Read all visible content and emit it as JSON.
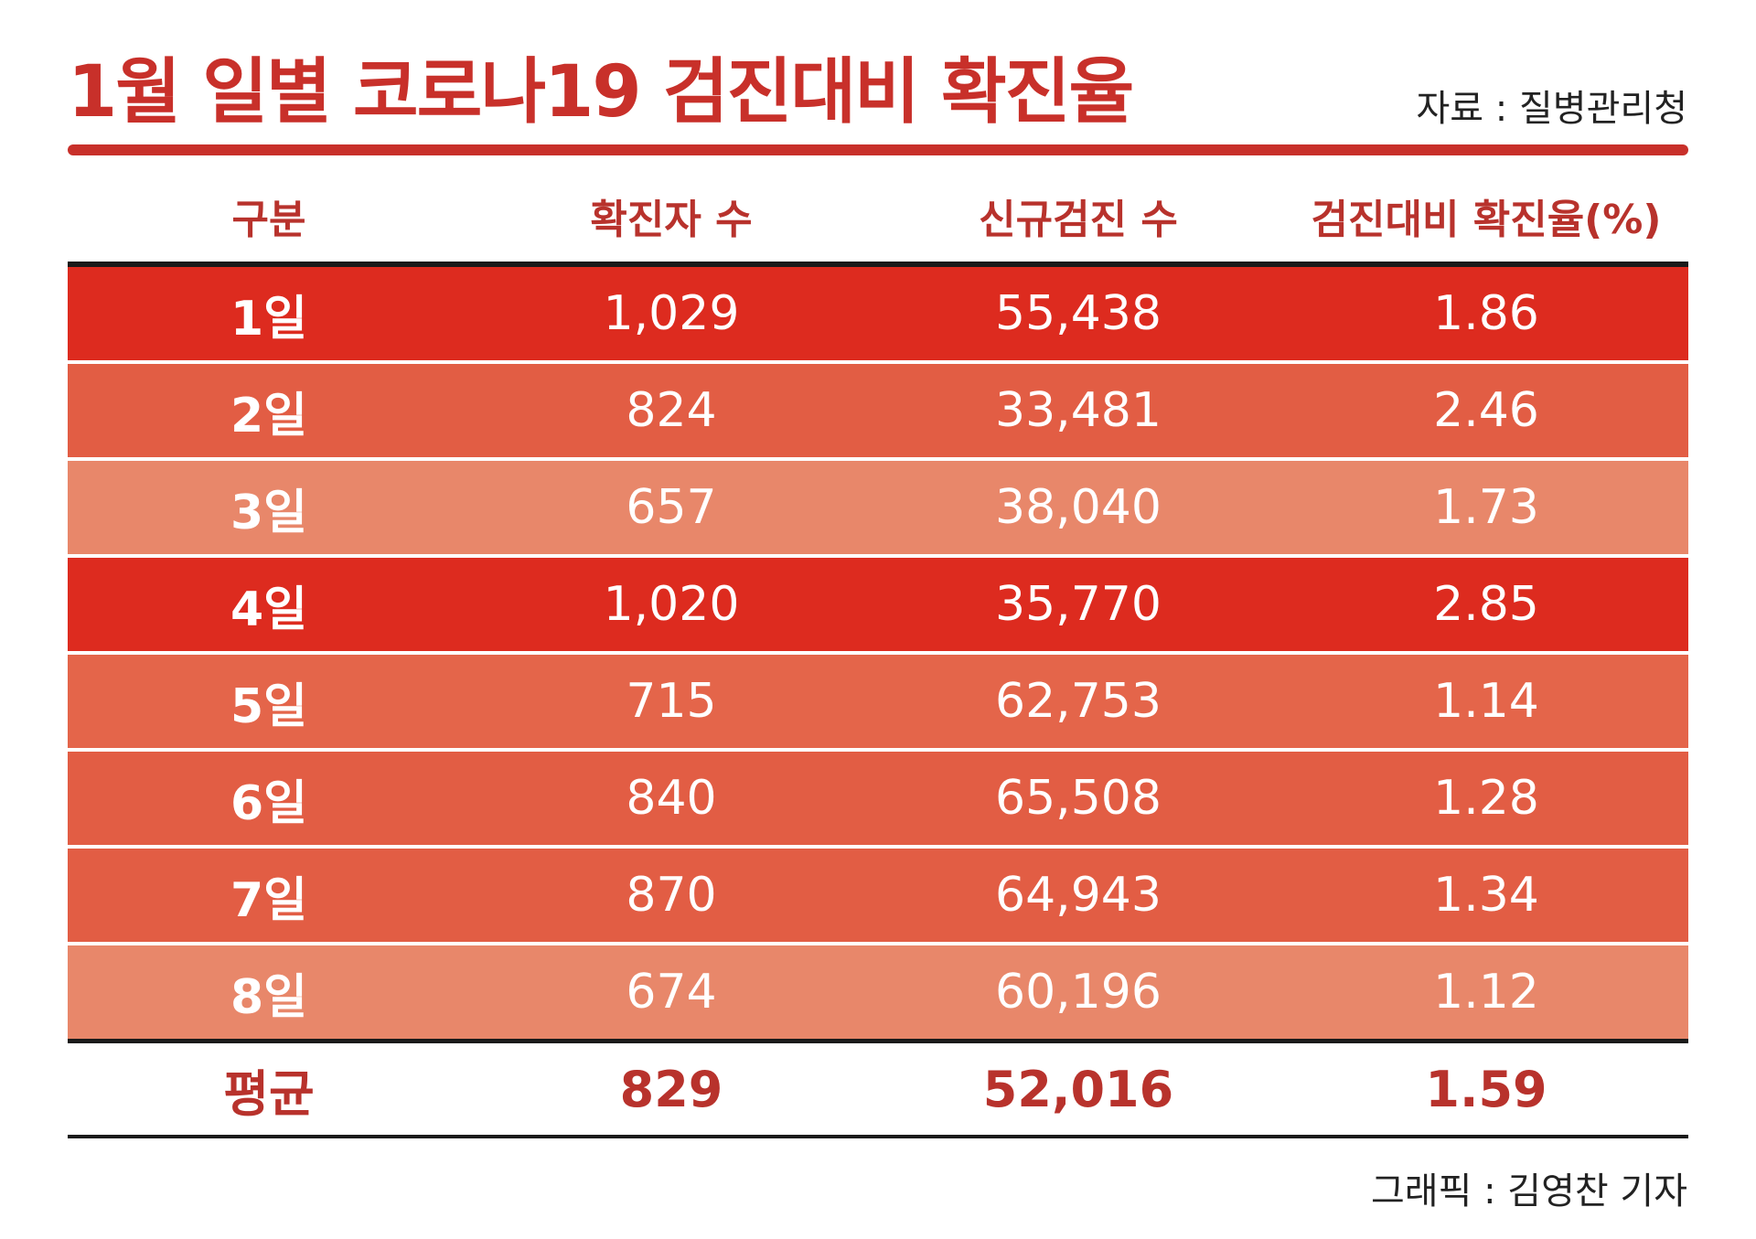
{
  "title": "1월 일별 코로나19 검진대비 확진율",
  "source": "자료 : 질병관리청",
  "credit": "그래픽 : 김영찬 기자",
  "colors": {
    "title": "#c8302a",
    "row_dark": "#dd2b1f",
    "row_mid": "#e25d44",
    "row_light": "#e8876a"
  },
  "table": {
    "headers": [
      "구분",
      "확진자 수",
      "신규검진 수",
      "검진대비 확진율(%)"
    ],
    "rows": [
      [
        "1일",
        "1,029",
        "55,438",
        "1.86"
      ],
      [
        "2일",
        "824",
        "33,481",
        "2.46"
      ],
      [
        "3일",
        "657",
        "38,040",
        "1.73"
      ],
      [
        "4일",
        "1,020",
        "35,770",
        "2.85"
      ],
      [
        "5일",
        "715",
        "62,753",
        "1.14"
      ],
      [
        "6일",
        "840",
        "65,508",
        "1.28"
      ],
      [
        "7일",
        "870",
        "64,943",
        "1.34"
      ],
      [
        "8일",
        "674",
        "60,196",
        "1.12"
      ]
    ],
    "average": [
      "평균",
      "829",
      "52,016",
      "1.59"
    ]
  }
}
